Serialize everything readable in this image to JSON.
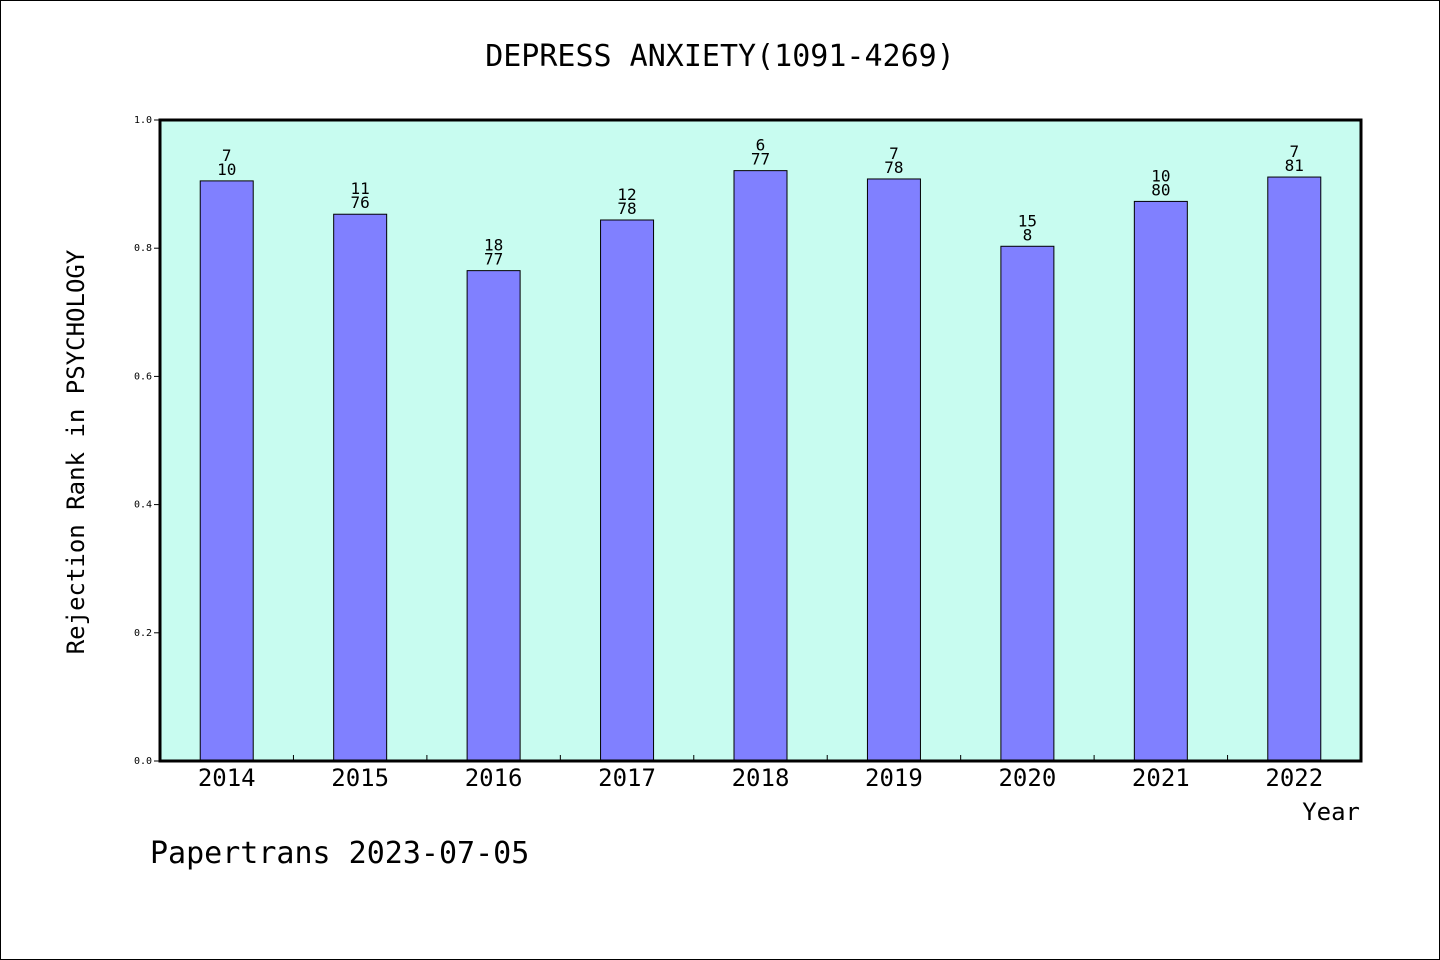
{
  "chart_data": {
    "type": "bar",
    "title": "DEPRESS ANXIETY(1091-4269)",
    "xlabel": "Year",
    "ylabel": "Rejection Rank in PSYCHOLOGY",
    "ylim": [
      0,
      1.0
    ],
    "yticks": [
      "0.0",
      "0.2",
      "0.4",
      "0.6",
      "0.8",
      "1.0"
    ],
    "categories": [
      "2014",
      "2015",
      "2016",
      "2017",
      "2018",
      "2019",
      "2020",
      "2021",
      "2022"
    ],
    "values": [
      0.905,
      0.853,
      0.765,
      0.844,
      0.921,
      0.908,
      0.803,
      0.873,
      0.911
    ],
    "labels_top": [
      "7",
      "11",
      "18",
      "12",
      "6",
      "7",
      "15",
      "10",
      "7"
    ],
    "labels_bottom": [
      "10",
      "76",
      "77",
      "78",
      "77",
      "78",
      "8",
      "80",
      "81"
    ],
    "grid": false,
    "colors": {
      "plot_background": "#c8fcf0",
      "bar_fill": "#8080ff",
      "bar_edge": "#000000"
    }
  },
  "footer": "Papertrans 2023-07-05"
}
